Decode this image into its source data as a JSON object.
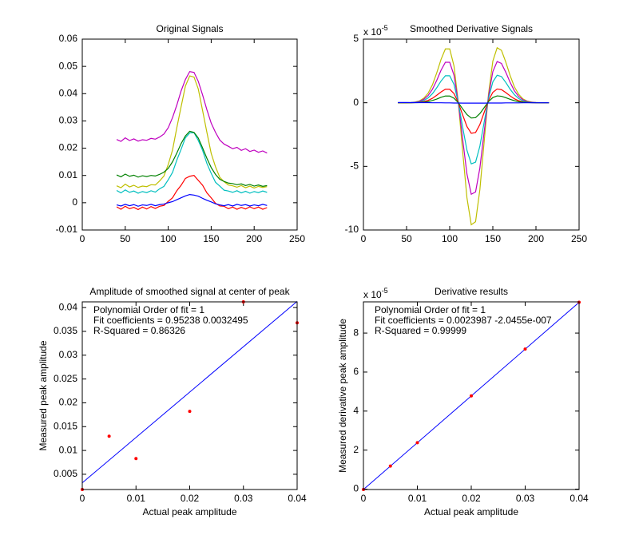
{
  "chart_data": [
    {
      "type": "line",
      "title": "Original Signals",
      "x": [
        40,
        45,
        50,
        55,
        60,
        65,
        70,
        75,
        80,
        85,
        90,
        95,
        100,
        105,
        110,
        115,
        120,
        125,
        130,
        135,
        140,
        145,
        150,
        155,
        160,
        165,
        170,
        175,
        180,
        185,
        190,
        195,
        200,
        205,
        210,
        215
      ],
      "xlim": [
        0,
        250
      ],
      "xticks": [
        0,
        50,
        100,
        150,
        200,
        250
      ],
      "ylim": [
        -0.01,
        0.06
      ],
      "yticks": [
        -0.01,
        0,
        0.01,
        0.02,
        0.03,
        0.04,
        0.05,
        0.06
      ],
      "series": [
        {
          "color": "#0000ff",
          "values": [
            -0.0008,
            -0.0012,
            -0.0006,
            -0.0011,
            -0.0007,
            -0.0013,
            -0.0008,
            -0.001,
            -0.0006,
            -0.0011,
            -0.0007,
            -0.0005,
            0.0,
            0.0004,
            0.0011,
            0.0018,
            0.0025,
            0.003,
            0.0028,
            0.0024,
            0.0016,
            0.0009,
            0.0003,
            -0.0004,
            -0.0008,
            -0.0011,
            -0.0007,
            -0.0012,
            -0.0006,
            -0.001,
            -0.0007,
            -0.0012,
            -0.0008,
            -0.0011,
            -0.0006,
            -0.001
          ]
        },
        {
          "color": "#008000",
          "values": [
            0.0102,
            0.0095,
            0.0105,
            0.0097,
            0.0101,
            0.0094,
            0.0099,
            0.0096,
            0.01,
            0.0098,
            0.0104,
            0.0112,
            0.0126,
            0.015,
            0.0182,
            0.0217,
            0.0245,
            0.0262,
            0.0258,
            0.0237,
            0.0201,
            0.0163,
            0.0129,
            0.0104,
            0.0086,
            0.0078,
            0.0072,
            0.007,
            0.0066,
            0.0069,
            0.0063,
            0.0067,
            0.0061,
            0.0065,
            0.006,
            0.0063
          ]
        },
        {
          "color": "#ff0000",
          "values": [
            -0.0015,
            -0.0024,
            -0.0013,
            -0.0022,
            -0.0017,
            -0.0025,
            -0.0016,
            -0.0023,
            -0.0014,
            -0.0021,
            -0.0013,
            -0.001,
            0.0005,
            0.0018,
            0.0044,
            0.0064,
            0.0089,
            0.0097,
            0.01,
            0.0082,
            0.0064,
            0.0036,
            0.0018,
            -0.0002,
            -0.0012,
            -0.0013,
            -0.0022,
            -0.0016,
            -0.0024,
            -0.0017,
            -0.0023,
            -0.0015,
            -0.0022,
            -0.0016,
            -0.0024,
            -0.0018
          ]
        },
        {
          "color": "#00bfbf",
          "values": [
            0.0045,
            0.0036,
            0.0047,
            0.0038,
            0.0043,
            0.0035,
            0.0041,
            0.0037,
            0.0044,
            0.0039,
            0.0051,
            0.006,
            0.0084,
            0.0111,
            0.0156,
            0.0196,
            0.0238,
            0.0256,
            0.0257,
            0.0228,
            0.0192,
            0.0144,
            0.0108,
            0.0075,
            0.0061,
            0.0046,
            0.0043,
            0.0038,
            0.0044,
            0.0036,
            0.0042,
            0.0035,
            0.0041,
            0.0037,
            0.0043,
            0.0038
          ]
        },
        {
          "color": "#bf00bf",
          "values": [
            0.0232,
            0.0225,
            0.0238,
            0.0228,
            0.0234,
            0.0226,
            0.0231,
            0.0229,
            0.0236,
            0.0233,
            0.0241,
            0.0252,
            0.0275,
            0.0312,
            0.0358,
            0.041,
            0.0452,
            0.0481,
            0.0478,
            0.0445,
            0.0395,
            0.0341,
            0.0292,
            0.0258,
            0.023,
            0.0215,
            0.0207,
            0.0198,
            0.0203,
            0.0192,
            0.0198,
            0.0188,
            0.0193,
            0.0185,
            0.019,
            0.0182
          ]
        },
        {
          "color": "#bfbf00",
          "values": [
            0.0062,
            0.0055,
            0.0068,
            0.0058,
            0.0064,
            0.0056,
            0.0061,
            0.0059,
            0.0066,
            0.0065,
            0.008,
            0.0098,
            0.014,
            0.0193,
            0.0275,
            0.0352,
            0.0428,
            0.0465,
            0.0461,
            0.0417,
            0.0338,
            0.0258,
            0.0181,
            0.0132,
            0.0093,
            0.0077,
            0.0065,
            0.0062,
            0.0057,
            0.0063,
            0.0055,
            0.0061,
            0.0054,
            0.006,
            0.0056,
            0.0059
          ]
        }
      ]
    },
    {
      "type": "line",
      "title": "Smoothed Derivative Signals",
      "y_multiplier": {
        "base": "x 10",
        "exponent": "-5"
      },
      "x": [
        40,
        45,
        50,
        55,
        60,
        65,
        70,
        75,
        80,
        85,
        90,
        95,
        100,
        105,
        110,
        115,
        120,
        125,
        130,
        135,
        140,
        145,
        150,
        155,
        160,
        165,
        170,
        175,
        180,
        185,
        190,
        195,
        200,
        205,
        210,
        215
      ],
      "xlim": [
        0,
        250
      ],
      "xticks": [
        0,
        50,
        100,
        150,
        200,
        250
      ],
      "ylim": [
        -10,
        5
      ],
      "yticks": [
        -10,
        -5,
        0,
        5
      ],
      "series": [
        {
          "color": "#0000ff",
          "values": [
            0.02,
            0.02,
            0.02,
            0.01,
            0.01,
            0.01,
            0.01,
            0.01,
            0,
            0,
            0,
            -0.01,
            -0.01,
            -0.02,
            -0.02,
            -0.03,
            -0.03,
            -0.03,
            -0.03,
            -0.03,
            -0.03,
            -0.02,
            -0.02,
            -0.02,
            -0.02,
            -0.01,
            -0.01,
            -0.01,
            -0.01,
            0,
            0,
            0,
            0,
            0,
            0,
            0
          ]
        },
        {
          "color": "#008000",
          "values": [
            0,
            0,
            0,
            0.002,
            0.007,
            0.02,
            0.045,
            0.09,
            0.18,
            0.29,
            0.43,
            0.53,
            0.53,
            0.36,
            0.002,
            -0.48,
            -0.93,
            -1.2,
            -1.17,
            -0.85,
            -0.38,
            0.09,
            0.41,
            0.54,
            0.51,
            0.4,
            0.27,
            0.16,
            0.08,
            0.04,
            0.02,
            0.01,
            0,
            0,
            0,
            0
          ]
        },
        {
          "color": "#ff0000",
          "values": [
            0,
            0,
            0.001,
            0.005,
            0.015,
            0.04,
            0.09,
            0.19,
            0.35,
            0.59,
            0.85,
            1.06,
            1.06,
            0.72,
            0.005,
            -0.95,
            -1.87,
            -2.4,
            -2.34,
            -1.71,
            -0.75,
            0.17,
            0.82,
            1.08,
            1.03,
            0.8,
            0.54,
            0.31,
            0.16,
            0.07,
            0.03,
            0.01,
            0,
            0,
            0,
            0
          ]
        },
        {
          "color": "#00bfbf",
          "values": [
            0,
            0,
            0.002,
            0.01,
            0.03,
            0.08,
            0.18,
            0.38,
            0.71,
            1.18,
            1.71,
            2.12,
            2.12,
            1.44,
            0.01,
            -1.91,
            -3.73,
            -4.8,
            -4.67,
            -3.41,
            -1.51,
            0.35,
            1.64,
            2.16,
            2.06,
            1.6,
            1.07,
            0.63,
            0.33,
            0.15,
            0.06,
            0.02,
            0.01,
            0,
            0,
            0
          ]
        },
        {
          "color": "#bf00bf",
          "values": [
            0,
            0,
            0.004,
            0.015,
            0.04,
            0.12,
            0.27,
            0.57,
            1.06,
            1.76,
            2.56,
            3.18,
            3.18,
            2.16,
            0.01,
            -2.86,
            -5.6,
            -7.19,
            -7.01,
            -5.12,
            -2.26,
            0.52,
            2.45,
            3.24,
            3.09,
            2.4,
            1.61,
            0.94,
            0.49,
            0.23,
            0.1,
            0.04,
            0.01,
            0,
            0,
            0
          ]
        },
        {
          "color": "#bfbf00",
          "values": [
            0,
            0,
            0.005,
            0.02,
            0.06,
            0.15,
            0.36,
            0.75,
            1.41,
            2.35,
            3.41,
            4.23,
            4.23,
            2.88,
            0.02,
            -3.81,
            -7.47,
            -9.59,
            -9.35,
            -6.82,
            -3.02,
            0.7,
            3.27,
            4.32,
            4.12,
            3.2,
            2.15,
            1.25,
            0.66,
            0.3,
            0.13,
            0.05,
            0.02,
            0,
            0,
            0
          ]
        }
      ]
    },
    {
      "type": "scatter",
      "title": "Amplitude of smoothed signal at center of peak",
      "x_label": "Actual peak amplitude",
      "y_label": "Measured peak amplitude",
      "annotations": [
        "Polynomial Order of fit = 1",
        "Fit coefficients = 0.95238   0.0032495",
        "R-Squared = 0.86326"
      ],
      "xlim": [
        0,
        0.04
      ],
      "xticks": [
        0,
        0.01,
        0.02,
        0.03,
        0.04
      ],
      "ylim": [
        0.0018,
        0.0412
      ],
      "yticks": [
        0.005,
        0.01,
        0.015,
        0.02,
        0.025,
        0.03,
        0.035,
        0.04
      ],
      "x": [
        0,
        0.005,
        0.01,
        0.02,
        0.03,
        0.04
      ],
      "values": [
        0.0018,
        0.013,
        0.0083,
        0.0182,
        0.0412,
        0.0368
      ],
      "color": "#ff0000",
      "fit": {
        "x": [
          0,
          0.04
        ],
        "values": [
          0.0032,
          0.0413
        ],
        "color": "#0000ff"
      }
    },
    {
      "type": "scatter",
      "title": "Derivative results",
      "y_multiplier": {
        "base": "x 10",
        "exponent": "-5"
      },
      "x_label": "Actual peak amplitude",
      "y_label": "Measured derivative peak amplitude",
      "annotations": [
        "Polynomial Order of fit = 1",
        "Fit coefficients = 0.0023987 -2.0455e-007",
        "R-Squared = 0.99999"
      ],
      "xlim": [
        0,
        0.04
      ],
      "xticks": [
        0,
        0.01,
        0.02,
        0.03,
        0.04
      ],
      "ylim": [
        -0.02,
        9.6
      ],
      "yticks": [
        0,
        2,
        4,
        6,
        8
      ],
      "x": [
        0,
        0.005,
        0.01,
        0.02,
        0.03,
        0.04
      ],
      "values": [
        -0.02,
        1.18,
        2.38,
        4.78,
        7.18,
        9.58
      ],
      "color": "#ff0000",
      "fit": {
        "x": [
          0,
          0.04
        ],
        "values": [
          -0.02,
          9.575
        ],
        "color": "#0000ff"
      }
    }
  ]
}
